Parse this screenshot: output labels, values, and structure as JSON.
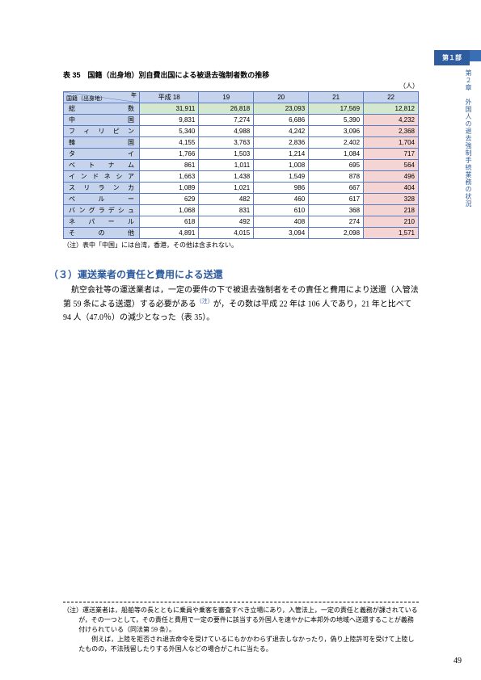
{
  "tab": {
    "chapter": "第１部"
  },
  "side_label": "第２章　外国人の退去強制手続業務の状況",
  "table": {
    "caption": "表 35　国籍（出身地）別自費出国による被退去強制者数の推移",
    "unit": "（人）",
    "diag_top": "年",
    "diag_bottom": "国籍（出身地）",
    "year_headers": [
      "平成 18",
      "19",
      "20",
      "21",
      "22"
    ],
    "rows": [
      {
        "label": "総　　　　　数",
        "vals": [
          "31,911",
          "26,818",
          "23,093",
          "17,569",
          "12,812"
        ],
        "colorcol5": "green"
      },
      {
        "label": "中　　　　　国",
        "vals": [
          "9,831",
          "7,274",
          "6,686",
          "5,390",
          "4,232"
        ],
        "colorcol5": "pink"
      },
      {
        "label": "フ ィ リ ピ ン",
        "vals": [
          "5,340",
          "4,988",
          "4,242",
          "3,096",
          "2,368"
        ],
        "colorcol5": "pink"
      },
      {
        "label": "韓　　　　　国",
        "vals": [
          "4,155",
          "3,763",
          "2,836",
          "2,402",
          "1,704"
        ],
        "colorcol5": "pink"
      },
      {
        "label": "タ　　　　　イ",
        "vals": [
          "1,766",
          "1,503",
          "1,214",
          "1,084",
          "717"
        ],
        "colorcol5": "pink"
      },
      {
        "label": "ベ　ト　ナ　ム",
        "vals": [
          "861",
          "1,011",
          "1,008",
          "695",
          "564"
        ],
        "colorcol5": "pink"
      },
      {
        "label": "イ ン ド ネ シ ア",
        "vals": [
          "1,663",
          "1,438",
          "1,549",
          "878",
          "496"
        ],
        "colorcol5": "pink"
      },
      {
        "label": "ス リ ラ ン カ",
        "vals": [
          "1,089",
          "1,021",
          "986",
          "667",
          "404"
        ],
        "colorcol5": "pink"
      },
      {
        "label": "ペ　　ル　　ー",
        "vals": [
          "629",
          "482",
          "460",
          "617",
          "328"
        ],
        "colorcol5": "pink"
      },
      {
        "label": "バングラデシュ",
        "vals": [
          "1,068",
          "831",
          "610",
          "368",
          "218"
        ],
        "colorcol5": "pink"
      },
      {
        "label": "ネ　パ　ー　ル",
        "vals": [
          "618",
          "492",
          "408",
          "274",
          "210"
        ],
        "colorcol5": "pink"
      },
      {
        "label": "そ　　の　　他",
        "vals": [
          "4,891",
          "4,015",
          "3,094",
          "2,098",
          "1,571"
        ],
        "colorcol5": "pink"
      }
    ],
    "note": "（注）表中「中国」には台湾，香港，その他は含まれない。"
  },
  "section": {
    "heading": "（３）運送業者の責任と費用による送還",
    "body": "航空会社等の運送業者は，一定の要件の下で被退去強制者をその責任と費用により送還（入管法第 59 条による送還）する必要がある<sup>（注）</sup>が，その数は平成 22 年は 106 人であり，21 年と比べて 94 人（47.0％）の減少となった（表 35）。"
  },
  "footnote": "（注）運送業者は，船舶等の長とともに乗員や乗客を審査すべき立場にあり，入管法上，一定の責任と義務が課されているが，その一つとして，その責任と費用で一定の要件に該当する外国人を速やかに本邦外の地域へ送還することが義務付けられている（同法第 59 条）。\n　　例えば，上陸を拒否され退去命令を受けているにもかかわらず退去しなかったり，偽り上陸許可を受けて上陸したものの，不法残留したりする外国人などの場合がこれに当たる。",
  "page_number": "49",
  "colors": {
    "primary_blue": "#2e5c9e",
    "header_blue": "#c5d4ec",
    "border_blue": "#5a7abf",
    "pink_cell": "#f5d4d4",
    "green_cell": "#d4e8d0"
  }
}
